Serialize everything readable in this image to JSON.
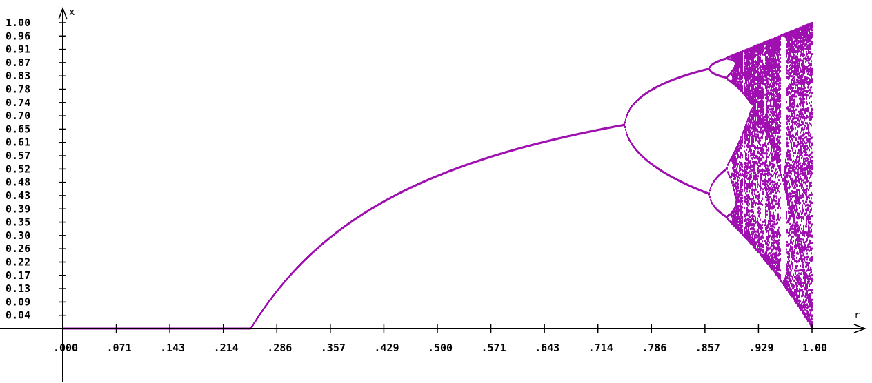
{
  "chart_data": {
    "type": "scatter",
    "title": "",
    "xlabel": "r",
    "ylabel": "x",
    "xlim": [
      0,
      1.0
    ],
    "ylim": [
      0,
      1.0
    ],
    "x_tick_labels": [
      ".000",
      ".071",
      ".143",
      ".214",
      ".286",
      ".357",
      ".429",
      ".500",
      ".571",
      ".643",
      ".714",
      ".786",
      ".857",
      ".929",
      "1.00"
    ],
    "y_tick_labels": [
      "0.04",
      "0.09",
      "0.13",
      "0.17",
      "0.22",
      "0.26",
      "0.30",
      "0.35",
      "0.39",
      "0.43",
      "0.48",
      "0.52",
      "0.57",
      "0.61",
      "0.65",
      "0.70",
      "0.74",
      "0.78",
      "0.83",
      "0.87",
      "0.91",
      "0.96",
      "1.00"
    ],
    "series_color": "#a010b0",
    "series": [
      {
        "description": "Bifurcation diagram of a logistic-type map: stable fixed point 0 until r≈0.25, then rising branch, period doubling near r≈0.75 and r≈0.87, chaos beyond ≈0.89 up to r=1.00",
        "fixed_point_zero": {
          "x": [
            0.0,
            0.25
          ],
          "y": [
            0.0,
            0.0
          ]
        },
        "main_branch": {
          "x": [
            0.25,
            0.3,
            0.35,
            0.4,
            0.45,
            0.5,
            0.55,
            0.6,
            0.65,
            0.7,
            0.75
          ],
          "y": [
            0.0,
            0.167,
            0.286,
            0.375,
            0.444,
            0.5,
            0.545,
            0.583,
            0.615,
            0.643,
            0.667
          ]
        },
        "period2_upper": {
          "x": [
            0.75,
            0.78,
            0.81,
            0.84,
            0.865
          ],
          "y": [
            0.667,
            0.76,
            0.81,
            0.845,
            0.86
          ]
        },
        "period2_lower": {
          "x": [
            0.75,
            0.78,
            0.81,
            0.84,
            0.865
          ],
          "y": [
            0.667,
            0.575,
            0.5,
            0.47,
            0.44
          ]
        },
        "chaos_region": {
          "r_start": 0.89,
          "r_end": 1.0,
          "x_min_at_end": 0.0,
          "x_max_at_end": 1.0
        }
      }
    ]
  }
}
